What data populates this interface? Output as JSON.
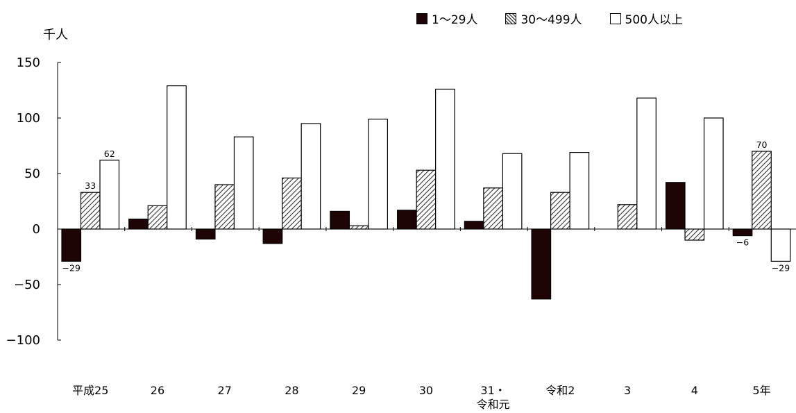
{
  "chart_data": {
    "type": "bar",
    "ylabel": "千人",
    "ylim": [
      -100,
      150
    ],
    "yticks": [
      150,
      100,
      50,
      0,
      -50,
      -100
    ],
    "categories": [
      "平成25",
      "26",
      "27",
      "28",
      "29",
      "30",
      "31・令和元",
      "令和2",
      "3",
      "4",
      "5年"
    ],
    "category_lines": [
      [
        "平成25"
      ],
      [
        "26"
      ],
      [
        "27"
      ],
      [
        "28"
      ],
      [
        "29"
      ],
      [
        "30"
      ],
      [
        "31・",
        "令和元"
      ],
      [
        "令和2"
      ],
      [
        "3"
      ],
      [
        "4"
      ],
      [
        "5年"
      ]
    ],
    "series": [
      {
        "name": "1～29人",
        "pattern": "solid",
        "color": "#1e0404",
        "values": [
          -29,
          9,
          -9,
          -13,
          16,
          17,
          7,
          -63,
          0,
          42,
          -6
        ],
        "labels": [
          "-29",
          "",
          "",
          "",
          "",
          "",
          "",
          "",
          "",
          "",
          "-6"
        ]
      },
      {
        "name": "30～499人",
        "pattern": "hatch",
        "color": "#9a9a9a",
        "values": [
          33,
          21,
          40,
          46,
          3,
          53,
          37,
          33,
          22,
          -10,
          70
        ],
        "labels": [
          "33",
          "",
          "",
          "",
          "",
          "",
          "",
          "",
          "",
          "",
          "70"
        ]
      },
      {
        "name": "500人以上",
        "pattern": "white",
        "color": "#ffffff",
        "values": [
          62,
          129,
          83,
          95,
          99,
          126,
          68,
          69,
          118,
          100,
          -29
        ],
        "labels": [
          "62",
          "",
          "",
          "",
          "",
          "",
          "",
          "",
          "",
          "",
          "-29"
        ]
      }
    ],
    "legend": "top-right",
    "grid": false
  }
}
